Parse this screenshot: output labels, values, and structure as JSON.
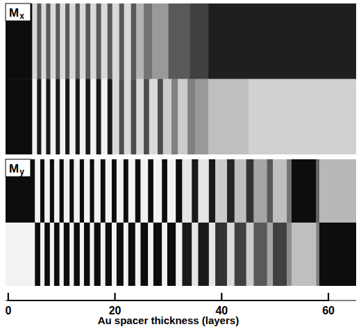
{
  "chart_data": {
    "type": "image",
    "x_label": "Au spacer thickness (layers)",
    "xlim": [
      -0.5,
      65.2
    ],
    "xticks": [
      0,
      20,
      40,
      60
    ],
    "panels": [
      {
        "label": "M",
        "subscript": "x",
        "rows": [
          {
            "edges": [
              -0.5,
              4.5,
              5.4,
              6.2,
              7.1,
              7.9,
              8.9,
              9.7,
              10.7,
              11.5,
              12.6,
              13.4,
              14.5,
              15.4,
              16.5,
              17.4,
              18.6,
              19.5,
              20.8,
              21.7,
              23,
              24,
              25.4,
              27,
              30,
              34,
              37.5,
              65.2
            ],
            "shades": [
              0.05,
              0.85,
              0.35,
              0.85,
              0.35,
              0.85,
              0.35,
              0.85,
              0.35,
              0.85,
              0.35,
              0.85,
              0.35,
              0.85,
              0.35,
              0.85,
              0.35,
              0.85,
              0.35,
              0.85,
              0.35,
              0.7,
              0.45,
              0.6,
              0.35,
              0.25,
              0.12
            ]
          },
          {
            "edges": [
              -0.5,
              4.5,
              5.4,
              6.2,
              7.1,
              7.9,
              8.9,
              9.7,
              10.7,
              11.5,
              12.6,
              13.4,
              14.5,
              15.4,
              16.5,
              17.4,
              18.6,
              19.5,
              20.8,
              21.7,
              23,
              24,
              25.4,
              26.4,
              28,
              29,
              30.6,
              31.8,
              33.6,
              35,
              37.5,
              45,
              65.2
            ],
            "shades": [
              0.05,
              0.95,
              0.1,
              0.95,
              0.1,
              0.95,
              0.1,
              0.95,
              0.1,
              0.95,
              0.1,
              0.95,
              0.1,
              0.95,
              0.1,
              0.95,
              0.1,
              0.85,
              0.3,
              0.85,
              0.3,
              0.85,
              0.3,
              0.85,
              0.3,
              0.8,
              0.5,
              0.8,
              0.5,
              0.6,
              0.75,
              0.82
            ]
          }
        ]
      },
      {
        "label": "M",
        "subscript": "y",
        "rows": [
          {
            "edges": [
              -0.5,
              5,
              6,
              6.8,
              7.8,
              8.6,
              9.6,
              10.4,
              11.5,
              12.3,
              13.4,
              14.2,
              15.3,
              16.1,
              17.3,
              18.2,
              19.4,
              20.3,
              21.6,
              22.5,
              23.8,
              24.8,
              26.2,
              27.2,
              28.8,
              29.8,
              31.4,
              32.6,
              34.4,
              35.6,
              37.6,
              38.8,
              41,
              42.4,
              44.6,
              46,
              48.5,
              49.6,
              52.2,
              53.1,
              57.7,
              58.3,
              65.2
            ],
            "shades": [
              0.05,
              0.95,
              0.05,
              0.95,
              0.05,
              0.95,
              0.05,
              0.95,
              0.05,
              0.95,
              0.05,
              0.95,
              0.05,
              0.95,
              0.05,
              0.95,
              0.05,
              0.95,
              0.05,
              0.95,
              0.05,
              0.95,
              0.05,
              0.95,
              0.05,
              0.95,
              0.05,
              0.9,
              0.1,
              0.9,
              0.1,
              0.8,
              0.15,
              0.75,
              0.2,
              0.65,
              0.35,
              0.75,
              0.45,
              0.05,
              0.4,
              0.72
            ]
          },
          {
            "edges": [
              -0.5,
              5,
              6,
              6.8,
              7.8,
              8.6,
              9.6,
              10.4,
              11.5,
              12.3,
              13.4,
              14.2,
              15.3,
              16.1,
              17.3,
              18.2,
              19.4,
              20.3,
              21.6,
              22.5,
              23.8,
              24.8,
              26.2,
              27.2,
              28.8,
              29.8,
              31.4,
              32.6,
              34.4,
              35.6,
              37.6,
              38.8,
              41,
              42.4,
              44.6,
              46,
              48.5,
              49.6,
              52.2,
              53.1,
              57.7,
              58.3,
              65.2
            ],
            "shades": [
              0.95,
              0.05,
              0.95,
              0.05,
              0.95,
              0.05,
              0.95,
              0.05,
              0.95,
              0.05,
              0.95,
              0.05,
              0.95,
              0.05,
              0.95,
              0.05,
              0.95,
              0.05,
              0.95,
              0.05,
              0.95,
              0.05,
              0.95,
              0.05,
              0.95,
              0.05,
              0.95,
              0.1,
              0.9,
              0.1,
              0.9,
              0.2,
              0.85,
              0.25,
              0.8,
              0.35,
              0.65,
              0.25,
              0.55,
              0.75,
              0.5,
              0.05
            ]
          }
        ]
      }
    ]
  }
}
